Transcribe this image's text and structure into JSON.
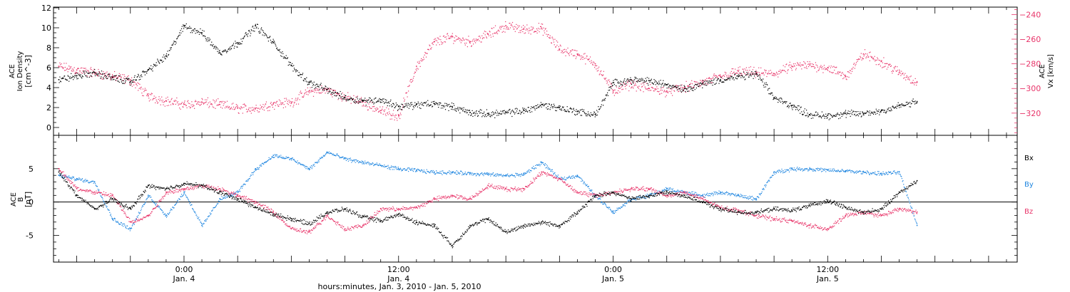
{
  "figure": {
    "time_axis_title": "hours:minutes, Jan.  3, 2010 - Jan.  5, 2010",
    "time_ticks": [
      {
        "t": 24,
        "line1": "0:00",
        "line2": "Jan. 4"
      },
      {
        "t": 36,
        "line1": "12:00",
        "line2": "Jan. 4"
      },
      {
        "t": 48,
        "line1": "0:00",
        "line2": "Jan. 5"
      },
      {
        "t": 60,
        "line1": "12:00",
        "line2": "Jan. 5"
      }
    ]
  },
  "colors": {
    "black": "#000000",
    "pink": "#e8356a",
    "blue": "#1f86e0"
  },
  "chart_data": [
    {
      "type": "scatter",
      "title": "",
      "x_unit": "hours since Jan. 3, 2010 00:00",
      "xlim": [
        16.7,
        70.6
      ],
      "ylabel_left": [
        "ACE",
        "Ion Density",
        "[cm^-3]"
      ],
      "ylim_left": [
        -0.5,
        12
      ],
      "yticks_left": [
        0,
        2,
        4,
        6,
        8,
        10,
        12
      ],
      "ylabel_right": [
        "ACE",
        "Vx [km/s]"
      ],
      "ylim_right": [
        -338,
        -234
      ],
      "yticks_right": [
        -240,
        -260,
        -280,
        -300,
        -320
      ],
      "series": [
        {
          "name": "",
          "axis": "left",
          "color": "#000000",
          "x": [
            17,
            18,
            19,
            20,
            21,
            22,
            23,
            24,
            25,
            26,
            27,
            28,
            29,
            30,
            31,
            32,
            33,
            34,
            35,
            36,
            37,
            38,
            39,
            40,
            41,
            42,
            43,
            44,
            45,
            46,
            47,
            48,
            49,
            50,
            51,
            52,
            53,
            54,
            55,
            56,
            57,
            58,
            59,
            60,
            61,
            62,
            63,
            64,
            65
          ],
          "y": [
            4.8,
            5.2,
            5.5,
            5.0,
            4.6,
            5.8,
            7.2,
            10.2,
            9.5,
            7.5,
            8.5,
            10.2,
            8.5,
            6.2,
            4.5,
            3.8,
            3.0,
            2.7,
            2.8,
            2.1,
            2.3,
            2.4,
            2.1,
            1.5,
            1.4,
            1.5,
            1.7,
            2.3,
            2.0,
            1.6,
            1.3,
            4.5,
            4.8,
            4.7,
            4.3,
            3.9,
            4.4,
            4.8,
            5.1,
            5.4,
            3.0,
            2.2,
            1.3,
            1.2,
            1.4,
            1.4,
            1.7,
            2.2,
            2.6
          ]
        },
        {
          "name": "",
          "axis": "right",
          "color": "#e8356a",
          "x": [
            17,
            18,
            19,
            20,
            21,
            22,
            23,
            24,
            25,
            26,
            27,
            28,
            29,
            30,
            31,
            32,
            33,
            34,
            35,
            36,
            37,
            38,
            39,
            40,
            41,
            42,
            43,
            44,
            45,
            46,
            47,
            48,
            49,
            50,
            51,
            52,
            53,
            54,
            55,
            56,
            57,
            58,
            59,
            60,
            61,
            62,
            63,
            64,
            65
          ],
          "y": [
            -282,
            -285,
            -287,
            -290,
            -293,
            -306,
            -310,
            -313,
            -311,
            -313,
            -316,
            -316,
            -312,
            -311,
            -302,
            -301,
            -307,
            -311,
            -318,
            -322,
            -282,
            -262,
            -258,
            -262,
            -256,
            -249,
            -252,
            -251,
            -268,
            -272,
            -280,
            -302,
            -296,
            -300,
            -302,
            -299,
            -295,
            -290,
            -286,
            -287,
            -288,
            -282,
            -281,
            -283,
            -290,
            -272,
            -278,
            -287,
            -295
          ]
        }
      ]
    },
    {
      "type": "scatter",
      "title": "",
      "x_unit": "hours since Jan. 3, 2010 00:00",
      "xlim": [
        16.7,
        70.6
      ],
      "ylabel": [
        "ACE",
        "B",
        "[nT]"
      ],
      "ylim": [
        -9,
        10
      ],
      "yticks": [
        -5,
        0,
        5
      ],
      "series": [
        {
          "name": "Bx",
          "color": "#000000",
          "x": [
            17,
            18,
            19,
            20,
            21,
            22,
            23,
            24,
            25,
            26,
            27,
            28,
            29,
            30,
            31,
            32,
            33,
            34,
            35,
            36,
            37,
            38,
            39,
            40,
            41,
            42,
            43,
            44,
            45,
            46,
            47,
            48,
            49,
            50,
            51,
            52,
            53,
            54,
            55,
            56,
            57,
            58,
            59,
            60,
            61,
            62,
            63,
            64,
            65
          ],
          "y": [
            4.5,
            1.0,
            -1.0,
            0.5,
            -1.0,
            2.5,
            2.0,
            2.8,
            2.5,
            1.5,
            0.5,
            -0.8,
            -1.8,
            -2.5,
            -3.2,
            -1.5,
            -1.0,
            -2.2,
            -2.8,
            -1.8,
            -3.0,
            -3.5,
            -6.5,
            -3.5,
            -2.5,
            -4.5,
            -3.5,
            -3.0,
            -3.5,
            -1.5,
            1.0,
            1.5,
            0.5,
            1.0,
            1.5,
            1.0,
            0.0,
            -1.0,
            -1.5,
            -1.5,
            -1.0,
            -1.2,
            -0.5,
            0.3,
            -0.8,
            -1.5,
            -1.0,
            1.5,
            3.2
          ]
        },
        {
          "name": "By",
          "color": "#1f86e0",
          "x": [
            17,
            18,
            19,
            20,
            21,
            22,
            23,
            24,
            25,
            26,
            27,
            28,
            29,
            30,
            31,
            32,
            33,
            34,
            35,
            36,
            37,
            38,
            39,
            40,
            41,
            42,
            43,
            44,
            45,
            46,
            47,
            48,
            49,
            50,
            51,
            52,
            53,
            54,
            55,
            56,
            57,
            58,
            59,
            60,
            61,
            62,
            63,
            64,
            65
          ],
          "y": [
            4.0,
            3.5,
            3.0,
            -2.5,
            -4.0,
            1.0,
            -2.0,
            1.5,
            -3.5,
            0.5,
            1.5,
            5.0,
            7.0,
            6.5,
            5.0,
            7.5,
            6.5,
            6.0,
            5.5,
            5.0,
            4.8,
            4.5,
            4.5,
            4.3,
            4.2,
            4.0,
            4.2,
            6.0,
            3.5,
            4.0,
            1.0,
            -1.5,
            0.5,
            1.0,
            2.0,
            1.5,
            1.0,
            1.5,
            1.0,
            0.5,
            4.5,
            5.0,
            5.0,
            4.8,
            4.7,
            4.5,
            4.3,
            4.5,
            -3.5
          ]
        },
        {
          "name": "Bz",
          "color": "#e8356a",
          "x": [
            17,
            18,
            19,
            20,
            21,
            22,
            23,
            24,
            25,
            26,
            27,
            28,
            29,
            30,
            31,
            32,
            33,
            34,
            35,
            36,
            37,
            38,
            39,
            40,
            41,
            42,
            43,
            44,
            45,
            46,
            47,
            48,
            49,
            50,
            51,
            52,
            53,
            54,
            55,
            56,
            57,
            58,
            59,
            60,
            61,
            62,
            63,
            64,
            65
          ],
          "y": [
            5.0,
            2.0,
            1.5,
            1.0,
            -3.0,
            -2.0,
            1.5,
            2.0,
            2.5,
            2.0,
            1.0,
            0.0,
            -1.5,
            -4.0,
            -4.5,
            -2.0,
            -4.0,
            -3.5,
            -1.0,
            -1.0,
            -0.8,
            0.5,
            1.0,
            0.5,
            2.5,
            2.0,
            2.0,
            4.5,
            3.5,
            1.5,
            1.0,
            1.5,
            2.0,
            2.0,
            1.0,
            1.5,
            0.5,
            -0.8,
            -1.2,
            -2.0,
            -2.5,
            -2.8,
            -3.5,
            -4.0,
            -2.0,
            -1.5,
            -2.0,
            -1.0,
            -1.5
          ]
        }
      ]
    }
  ]
}
